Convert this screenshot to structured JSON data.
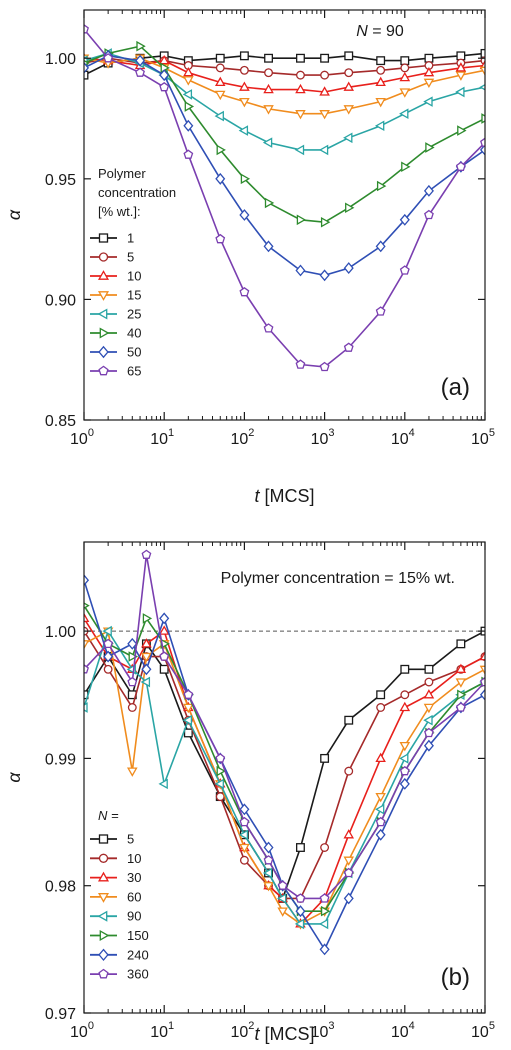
{
  "colors": [
    "#1a1a1a",
    "#a52a2a",
    "#e8201c",
    "#f08c1e",
    "#2aa5a5",
    "#2e8b2e",
    "#2f4fb5",
    "#7a3fb0"
  ],
  "marker_fill": "#ffffff",
  "chart_data": [
    {
      "type": "line",
      "panel_label": "(a)",
      "annotation_N": "N",
      "annotation_value": " = 90",
      "xlabel_var": "t",
      "xlabel_unit": " [MCS]",
      "ylabel": "α",
      "x_scale": "log",
      "xlim": [
        1,
        100000
      ],
      "ylim": [
        0.85,
        1.02
      ],
      "y_ticks": [
        "0.85",
        "0.90",
        "0.95",
        "1.00"
      ],
      "y_tick_values": [
        0.85,
        0.9,
        0.95,
        1.0
      ],
      "x_tick_exponents": [
        "0",
        "1",
        "2",
        "3",
        "4",
        "5"
      ],
      "x_tick_base": "10",
      "legend_title": [
        "Polymer",
        "concentration",
        "[% wt.]:"
      ],
      "legend_position": "left",
      "series_markers": [
        "square",
        "circle",
        "triangle-up",
        "triangle-down",
        "triangle-left",
        "triangle-right",
        "diamond",
        "pentagon"
      ],
      "series": [
        {
          "name": "1",
          "x": [
            1,
            2,
            5,
            10,
            20,
            50,
            100,
            200,
            500,
            1000,
            2000,
            5000,
            10000,
            20000,
            50000,
            100000
          ],
          "y": [
            0.993,
            0.998,
            1.0,
            1.001,
            0.999,
            1.0,
            1.001,
            1.0,
            1.0,
            1.0,
            1.001,
            0.999,
            0.999,
            1.0,
            1.001,
            1.002
          ]
        },
        {
          "name": "5",
          "x": [
            1,
            2,
            5,
            10,
            20,
            50,
            100,
            200,
            500,
            1000,
            2000,
            5000,
            10000,
            20000,
            50000,
            100000
          ],
          "y": [
            0.998,
            1.0,
            0.998,
            0.999,
            0.997,
            0.996,
            0.995,
            0.994,
            0.993,
            0.993,
            0.994,
            0.995,
            0.996,
            0.997,
            0.998,
            0.999
          ]
        },
        {
          "name": "10",
          "x": [
            1,
            2,
            5,
            10,
            20,
            50,
            100,
            200,
            500,
            1000,
            2000,
            5000,
            10000,
            20000,
            50000,
            100000
          ],
          "y": [
            1.0,
            0.999,
            0.997,
            0.999,
            0.994,
            0.99,
            0.988,
            0.987,
            0.987,
            0.986,
            0.988,
            0.99,
            0.992,
            0.994,
            0.996,
            0.997
          ]
        },
        {
          "name": "15",
          "x": [
            1,
            2,
            5,
            10,
            20,
            50,
            100,
            200,
            500,
            1000,
            2000,
            5000,
            10000,
            20000,
            50000,
            100000
          ],
          "y": [
            1.0,
            0.998,
            1.0,
            0.996,
            0.991,
            0.985,
            0.982,
            0.979,
            0.977,
            0.977,
            0.979,
            0.982,
            0.986,
            0.99,
            0.993,
            0.995
          ]
        },
        {
          "name": "25",
          "x": [
            1,
            2,
            5,
            10,
            20,
            50,
            100,
            200,
            500,
            1000,
            2000,
            5000,
            10000,
            20000,
            50000,
            100000
          ],
          "y": [
            0.999,
            1.002,
            0.998,
            0.993,
            0.985,
            0.976,
            0.97,
            0.965,
            0.962,
            0.962,
            0.967,
            0.972,
            0.977,
            0.982,
            0.986,
            0.988
          ]
        },
        {
          "name": "40",
          "x": [
            1,
            2,
            5,
            10,
            20,
            50,
            100,
            200,
            500,
            1000,
            2000,
            5000,
            10000,
            20000,
            50000,
            100000
          ],
          "y": [
            0.998,
            1.002,
            1.005,
            0.996,
            0.98,
            0.962,
            0.95,
            0.94,
            0.933,
            0.932,
            0.938,
            0.947,
            0.955,
            0.963,
            0.97,
            0.975
          ]
        },
        {
          "name": "50",
          "x": [
            1,
            2,
            5,
            10,
            20,
            50,
            100,
            200,
            500,
            1000,
            2000,
            5000,
            10000,
            20000,
            50000,
            100000
          ],
          "y": [
            0.996,
            1.001,
            0.999,
            0.993,
            0.972,
            0.95,
            0.935,
            0.922,
            0.912,
            0.91,
            0.913,
            0.922,
            0.933,
            0.945,
            0.955,
            0.962
          ]
        },
        {
          "name": "65",
          "x": [
            1,
            2,
            5,
            10,
            20,
            50,
            100,
            200,
            500,
            1000,
            2000,
            5000,
            10000,
            20000,
            50000,
            100000
          ],
          "y": [
            1.012,
            1.0,
            0.994,
            0.988,
            0.96,
            0.925,
            0.903,
            0.888,
            0.873,
            0.872,
            0.88,
            0.895,
            0.912,
            0.935,
            0.955,
            0.965
          ]
        }
      ]
    },
    {
      "type": "line",
      "panel_label": "(b)",
      "annotation": "Polymer concentration = 15% wt.",
      "xlabel_var": "t",
      "xlabel_unit": " [MCS]",
      "ylabel": "α",
      "x_scale": "log",
      "xlim": [
        1,
        100000
      ],
      "ylim": [
        0.97,
        1.007
      ],
      "reference_line": 1.0,
      "y_ticks": [
        "0.97",
        "0.98",
        "0.99",
        "1.00"
      ],
      "y_tick_values": [
        0.97,
        0.98,
        0.99,
        1.0
      ],
      "x_tick_exponents": [
        "0",
        "1",
        "2",
        "3",
        "4",
        "5"
      ],
      "x_tick_base": "10",
      "legend_title": [
        "N ="
      ],
      "legend_position": "left",
      "series_markers": [
        "square",
        "circle",
        "triangle-up",
        "triangle-down",
        "triangle-left",
        "triangle-right",
        "diamond",
        "pentagon"
      ],
      "series": [
        {
          "name": "5",
          "x": [
            1,
            2,
            4,
            6,
            10,
            20,
            50,
            100,
            200,
            300,
            500,
            1000,
            2000,
            5000,
            10000,
            20000,
            50000,
            100000
          ],
          "y": [
            0.995,
            0.998,
            0.995,
            0.999,
            0.997,
            0.992,
            0.987,
            0.984,
            0.981,
            0.979,
            0.983,
            0.99,
            0.993,
            0.995,
            0.997,
            0.997,
            0.999,
            1.0
          ]
        },
        {
          "name": "10",
          "x": [
            1,
            2,
            4,
            6,
            10,
            20,
            50,
            100,
            200,
            300,
            500,
            1000,
            2000,
            5000,
            10000,
            20000,
            50000,
            100000
          ],
          "y": [
            1.0,
            0.997,
            0.994,
            0.998,
            0.998,
            0.993,
            0.987,
            0.982,
            0.98,
            0.979,
            0.979,
            0.983,
            0.989,
            0.994,
            0.995,
            0.996,
            0.997,
            0.998
          ]
        },
        {
          "name": "30",
          "x": [
            1,
            2,
            4,
            6,
            10,
            20,
            50,
            100,
            200,
            300,
            500,
            1000,
            2000,
            5000,
            10000,
            20000,
            50000,
            100000
          ],
          "y": [
            1.001,
            0.998,
            0.997,
            0.999,
            1.0,
            0.994,
            0.988,
            0.983,
            0.98,
            0.979,
            0.977,
            0.979,
            0.984,
            0.99,
            0.994,
            0.995,
            0.997,
            0.998
          ]
        },
        {
          "name": "60",
          "x": [
            1,
            2,
            4,
            6,
            10,
            20,
            50,
            100,
            200,
            300,
            500,
            1000,
            2000,
            5000,
            10000,
            20000,
            50000,
            100000
          ],
          "y": [
            0.999,
            1.0,
            0.989,
            0.998,
            0.999,
            0.994,
            0.988,
            0.983,
            0.98,
            0.978,
            0.977,
            0.978,
            0.982,
            0.987,
            0.991,
            0.994,
            0.996,
            0.997
          ]
        },
        {
          "name": "90",
          "x": [
            1,
            2,
            4,
            6,
            10,
            20,
            50,
            100,
            200,
            300,
            500,
            1000,
            2000,
            5000,
            10000,
            20000,
            50000,
            100000
          ],
          "y": [
            0.994,
            1.0,
            0.997,
            0.996,
            0.988,
            0.993,
            0.988,
            0.984,
            0.981,
            0.979,
            0.977,
            0.977,
            0.981,
            0.986,
            0.99,
            0.993,
            0.995,
            0.996
          ]
        },
        {
          "name": "150",
          "x": [
            1,
            2,
            4,
            6,
            10,
            20,
            50,
            100,
            200,
            300,
            500,
            1000,
            2000,
            5000,
            10000,
            20000,
            50000,
            100000
          ],
          "y": [
            1.002,
            0.999,
            0.998,
            1.001,
            0.999,
            0.995,
            0.989,
            0.985,
            0.982,
            0.98,
            0.978,
            0.978,
            0.981,
            0.985,
            0.989,
            0.992,
            0.995,
            0.996
          ]
        },
        {
          "name": "240",
          "x": [
            1,
            2,
            4,
            6,
            10,
            20,
            50,
            100,
            200,
            300,
            500,
            1000,
            2000,
            5000,
            10000,
            20000,
            50000,
            100000
          ],
          "y": [
            1.004,
            0.998,
            0.999,
            0.997,
            1.001,
            0.995,
            0.99,
            0.986,
            0.983,
            0.98,
            0.978,
            0.975,
            0.979,
            0.984,
            0.988,
            0.991,
            0.994,
            0.995
          ]
        },
        {
          "name": "360",
          "x": [
            1,
            2,
            4,
            6,
            10,
            20,
            50,
            100,
            200,
            300,
            500,
            1000,
            2000,
            5000,
            10000,
            20000,
            50000,
            100000
          ],
          "y": [
            0.997,
            0.999,
            0.996,
            1.006,
            0.998,
            0.995,
            0.99,
            0.985,
            0.982,
            0.98,
            0.979,
            0.979,
            0.981,
            0.985,
            0.989,
            0.992,
            0.994,
            0.996
          ]
        }
      ]
    }
  ]
}
